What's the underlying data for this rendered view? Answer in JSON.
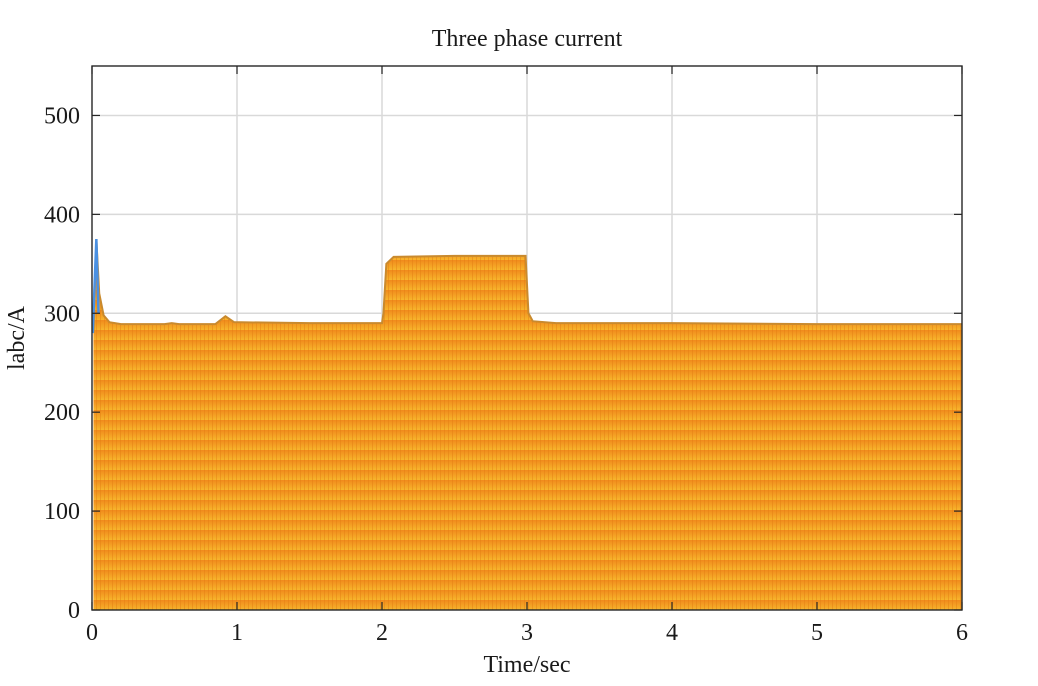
{
  "chart_data": {
    "type": "area",
    "title": "Three phase current",
    "xlabel": "Time/sec",
    "ylabel": "labc/A",
    "xlim": [
      0,
      6
    ],
    "ylim": [
      0,
      550
    ],
    "xticks": [
      0,
      1,
      2,
      3,
      4,
      5,
      6
    ],
    "yticks": [
      0,
      100,
      200,
      300,
      400,
      500
    ],
    "grid": true,
    "series": [
      {
        "color": "#f5a623",
        "points": [
          [
            0.01,
            280
          ],
          [
            0.03,
            375
          ],
          [
            0.05,
            320
          ],
          [
            0.08,
            298
          ],
          [
            0.12,
            291
          ],
          [
            0.2,
            289
          ],
          [
            0.5,
            289
          ],
          [
            0.55,
            290
          ],
          [
            0.6,
            289
          ],
          [
            0.85,
            289
          ],
          [
            0.92,
            297
          ],
          [
            0.98,
            291
          ],
          [
            1.5,
            290
          ],
          [
            2.0,
            290
          ],
          [
            2.01,
            300
          ],
          [
            2.03,
            350
          ],
          [
            2.08,
            357
          ],
          [
            2.5,
            358
          ],
          [
            2.99,
            358
          ],
          [
            3.01,
            300
          ],
          [
            3.04,
            292
          ],
          [
            3.2,
            290
          ],
          [
            4.0,
            290
          ],
          [
            5.0,
            289
          ],
          [
            6.0,
            289
          ]
        ]
      }
    ],
    "colors": {
      "fill_top": "#f08a1c",
      "fill_bottom": "#f7b52c",
      "envelope": "#c98a2e",
      "initial_spike": "#4a90e2"
    }
  }
}
